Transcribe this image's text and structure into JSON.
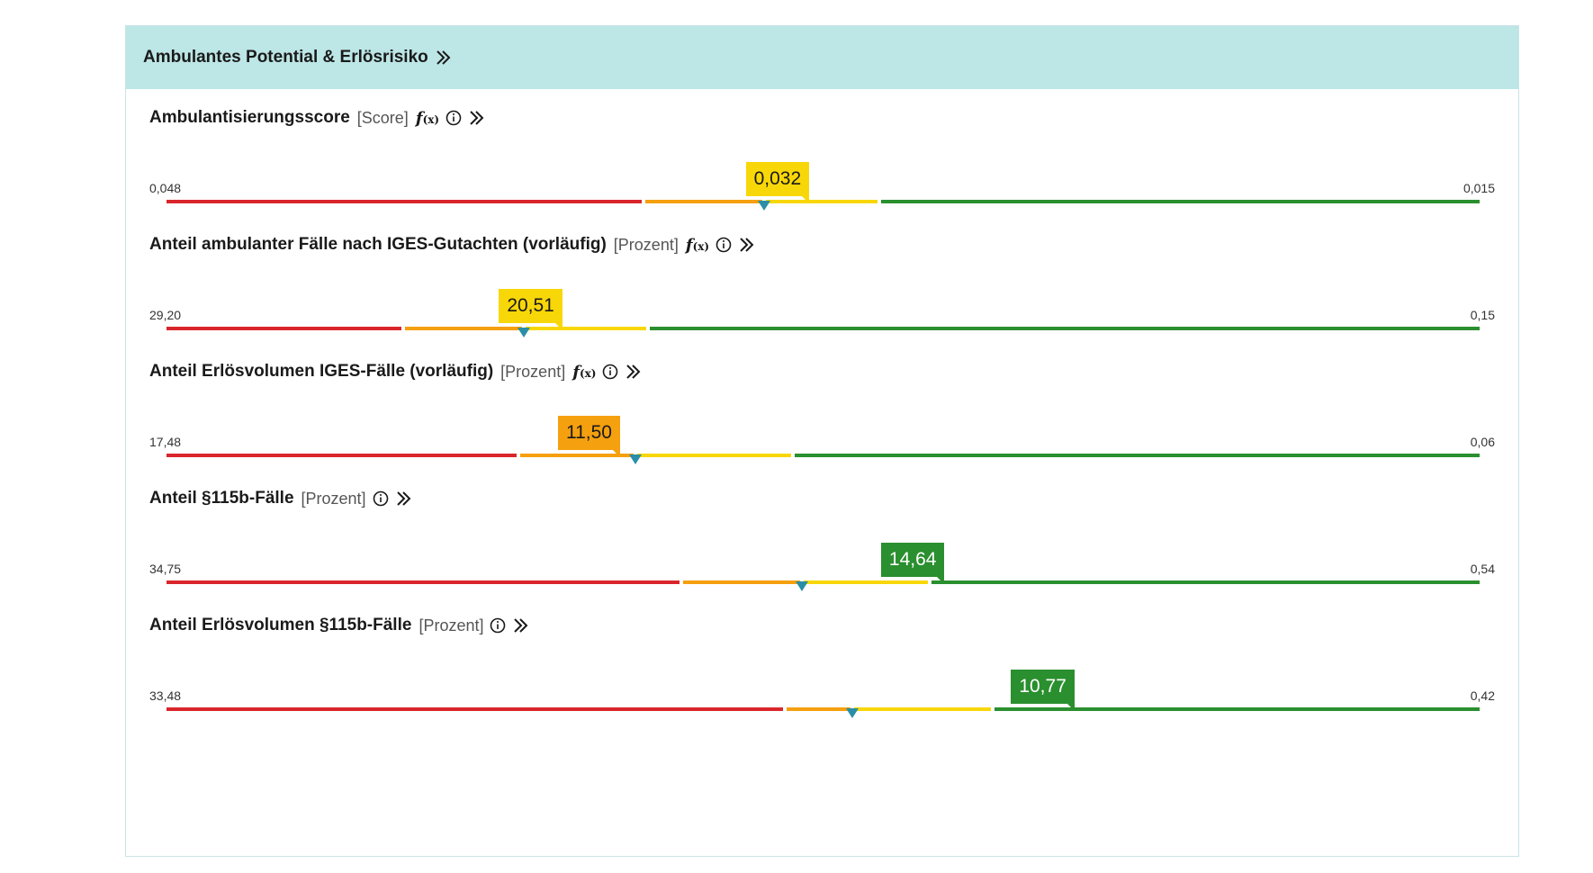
{
  "panel": {
    "title": "Ambulantes Potential & Erlösrisiko",
    "header_icon": "double-chevron-right-icon"
  },
  "colors": {
    "header_bg": "#bde6e6",
    "red": "#d9262c",
    "orange": "#f5a00f",
    "yellow": "#f8d708",
    "green": "#2a8f2e",
    "marker": "#2a8fa6"
  },
  "metrics": [
    {
      "label": "Ambulantisierungsscore",
      "unit": "[Score]",
      "has_formula": true,
      "formula_label": "f",
      "formula_sub": "(x)",
      "min_label": "0,048",
      "max_label": "0,015",
      "value_label": "0,032",
      "value_color": "yellow",
      "position": 0.455,
      "box_right": 0.485,
      "segments": [
        0.363,
        0.543
      ]
    },
    {
      "label": "Anteil ambulanter Fälle nach IGES-Gutachten (vorläufig)",
      "unit": "[Prozent]",
      "has_formula": true,
      "formula_label": "f",
      "formula_sub": "(x)",
      "min_label": "29,20",
      "max_label": "0,15",
      "value_label": "20,51",
      "value_color": "yellow",
      "position": 0.272,
      "box_right": 0.297,
      "segments": [
        0.18,
        0.367
      ]
    },
    {
      "label": "Anteil Erlösvolumen IGES-Fälle (vorläufig)",
      "unit": "[Prozent]",
      "has_formula": true,
      "formula_label": "f",
      "formula_sub": "(x)",
      "min_label": "17,48",
      "max_label": "0,06",
      "value_label": "11,50",
      "value_color": "orange",
      "position": 0.357,
      "box_right": 0.342,
      "segments": [
        0.268,
        0.477
      ]
    },
    {
      "label": "Anteil §115b-Fälle",
      "unit": "[Prozent]",
      "has_formula": false,
      "min_label": "34,75",
      "max_label": "0,54",
      "value_label": "14,64",
      "value_color": "green",
      "position": 0.484,
      "box_right": 0.588,
      "segments": [
        0.392,
        0.581
      ]
    },
    {
      "label": "Anteil Erlösvolumen §115b-Fälle",
      "unit": "[Prozent]",
      "has_formula": false,
      "min_label": "33,48",
      "max_label": "0,42",
      "value_label": "10,77",
      "value_color": "green",
      "position": 0.522,
      "box_right": 0.687,
      "segments": [
        0.471,
        0.629
      ]
    }
  ]
}
